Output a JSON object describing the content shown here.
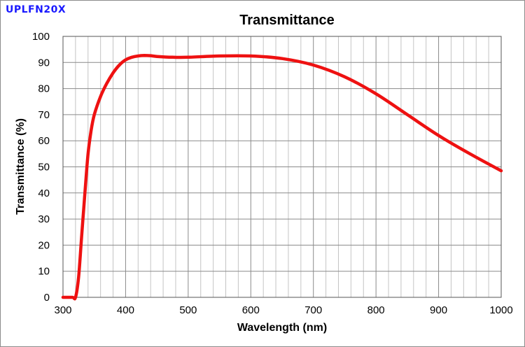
{
  "tag": "UPLFN20X",
  "chart_data": {
    "type": "line",
    "title": "Transmittance",
    "xlabel": "Wavelength (nm)",
    "ylabel": "Transmittance (%)",
    "xlim": [
      300,
      1000
    ],
    "ylim": [
      0,
      100
    ],
    "x_ticks": [
      "300",
      "400",
      "500",
      "600",
      "700",
      "800",
      "900",
      "1000"
    ],
    "y_ticks": [
      "0",
      "10",
      "20",
      "30",
      "40",
      "50",
      "60",
      "70",
      "80",
      "90",
      "100"
    ],
    "grid": true,
    "series": [
      {
        "name": "UPLFN20X",
        "color": "#ee1111",
        "x": [
          300,
          315,
          320,
          325,
          330,
          335,
          340,
          345,
          350,
          360,
          370,
          380,
          390,
          400,
          410,
          420,
          430,
          440,
          450,
          475,
          500,
          550,
          600,
          650,
          700,
          750,
          800,
          850,
          900,
          950,
          1000
        ],
        "y": [
          0,
          0,
          0,
          8,
          24,
          40,
          55,
          64,
          70,
          77,
          82,
          86,
          89,
          91,
          92,
          92.5,
          92.7,
          92.6,
          92.3,
          92,
          92,
          92.5,
          92.5,
          91.5,
          89,
          84.5,
          78,
          70,
          62,
          55,
          48.5
        ]
      }
    ]
  }
}
